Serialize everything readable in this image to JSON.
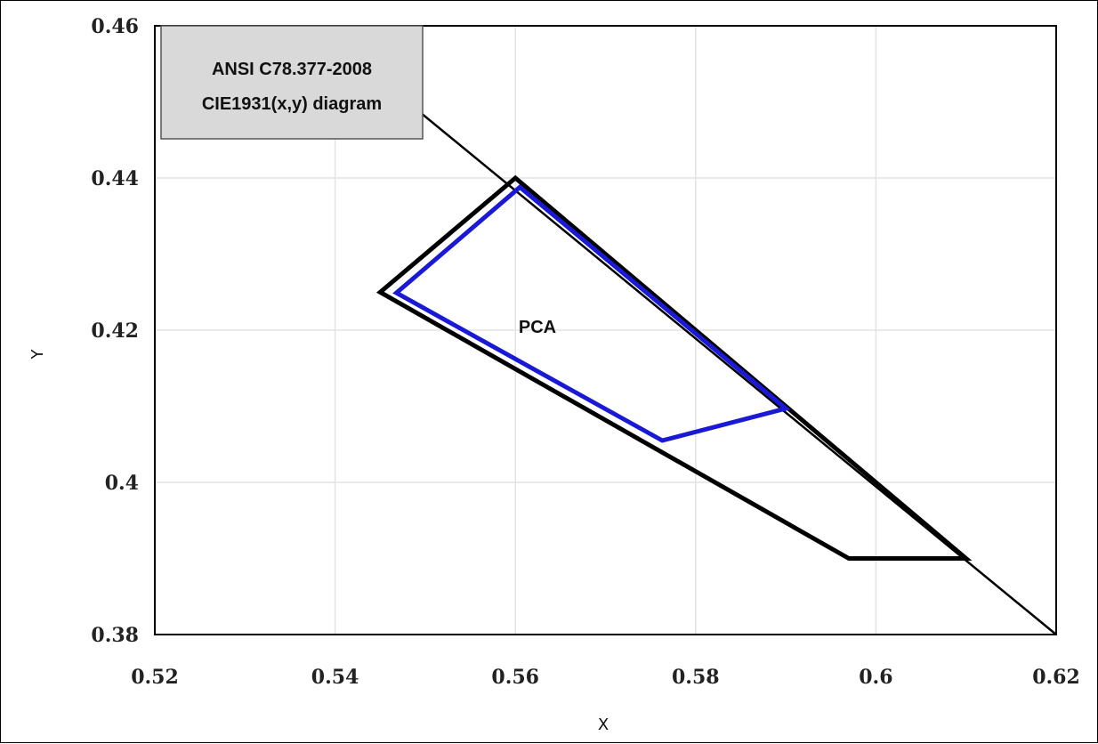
{
  "chart_data": {
    "type": "line",
    "title": "",
    "xlabel": "X",
    "ylabel": "Y",
    "xlim": [
      0.52,
      0.62
    ],
    "ylim": [
      0.38,
      0.46
    ],
    "x_ticks": [
      0.52,
      0.54,
      0.56,
      0.58,
      0.6,
      0.62
    ],
    "x_tick_labels": [
      "0.52",
      "0.54",
      "0.56",
      "0.58",
      "0.6",
      "0.62"
    ],
    "y_ticks": [
      0.38,
      0.4,
      0.42,
      0.44,
      0.46
    ],
    "y_tick_labels": [
      "0.38",
      "0.4",
      "0.42",
      "0.44",
      "0.46"
    ],
    "grid": true,
    "legend_box": {
      "line1": "ANSI C78.377-2008",
      "line2": "CIE1931(x,y) diagram",
      "placement": "top-left"
    },
    "annotation": "PCA",
    "series": [
      {
        "role": "spectral-locus-line",
        "color": "#000000",
        "x": [
          0.5475,
          0.62
        ],
        "y": [
          0.4505,
          0.38
        ]
      },
      {
        "role": "ansi-quadrangle",
        "color": "#000000",
        "closed": true,
        "x": [
          0.56,
          0.61,
          0.597,
          0.545
        ],
        "y": [
          0.44,
          0.39,
          0.39,
          0.425
        ]
      },
      {
        "role": "pca-quadrangle",
        "color": "#1a1ad6",
        "closed": true,
        "x": [
          0.5605,
          0.59,
          0.5763,
          0.5468
        ],
        "y": [
          0.4388,
          0.4097,
          0.4055,
          0.4249
        ]
      }
    ]
  }
}
